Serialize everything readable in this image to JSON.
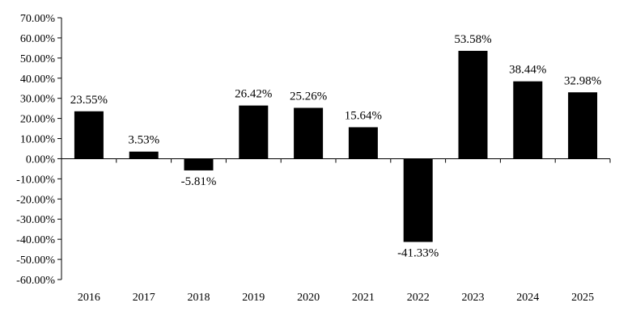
{
  "chart_data": {
    "type": "bar",
    "categories": [
      "2016",
      "2017",
      "2018",
      "2019",
      "2020",
      "2021",
      "2022",
      "2023",
      "2024",
      "2025"
    ],
    "values": [
      23.55,
      3.53,
      -5.81,
      26.42,
      25.26,
      15.64,
      -41.33,
      53.58,
      38.44,
      32.98
    ],
    "data_labels": [
      "23.55%",
      "3.53%",
      "-5.81%",
      "26.42%",
      "25.26%",
      "15.64%",
      "-41.33%",
      "53.58%",
      "38.44%",
      "32.98%"
    ],
    "y_ticks": [
      70,
      60,
      50,
      40,
      30,
      20,
      10,
      0,
      -10,
      -20,
      -30,
      -40,
      -50,
      -60
    ],
    "y_tick_labels": [
      "70.00%",
      "60.00%",
      "50.00%",
      "40.00%",
      "30.00%",
      "20.00%",
      "10.00%",
      "0.00%",
      "-10.00%",
      "-20.00%",
      "-30.00%",
      "-40.00%",
      "-50.00%",
      "-60.00%"
    ],
    "ylim": [
      -60,
      70
    ],
    "grid": false,
    "bar_color": "#000000",
    "title": "",
    "xlabel": "",
    "ylabel": ""
  }
}
